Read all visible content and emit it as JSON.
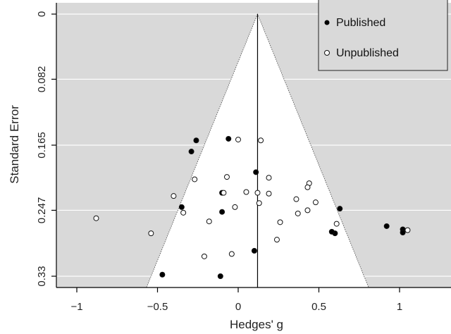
{
  "chart_data": {
    "type": "scatter",
    "title": "",
    "xlabel": "Hedges' g",
    "ylabel": "Standard Error",
    "xlim": [
      -1.1,
      1.3
    ],
    "ylim": [
      0.33,
      0.0
    ],
    "y_inverted": true,
    "x_ticks": [
      -1,
      -0.5,
      0,
      0.5,
      1
    ],
    "x_tick_labels": [
      "−1",
      "−0.5",
      "0",
      "0.5",
      "1"
    ],
    "y_ticks": [
      0,
      0.082,
      0.165,
      0.247,
      0.33
    ],
    "y_tick_labels": [
      "0",
      "0.082",
      "0.165",
      "0.247",
      "0.33"
    ],
    "grid": "horizontal",
    "background": "#d9d9d9",
    "funnel_color": "#ffffff",
    "pooled_effect": 0.12,
    "funnel_half_width_at_max_se": 0.66,
    "legend_position": "top-right",
    "legend": [
      {
        "label": "Published",
        "marker": "filled-circle"
      },
      {
        "label": "Unpublished",
        "marker": "open-circle"
      }
    ],
    "series": [
      {
        "name": "Published",
        "marker": "filled",
        "points": [
          {
            "x": -0.26,
            "y": 0.159
          },
          {
            "x": -0.06,
            "y": 0.157
          },
          {
            "x": -0.29,
            "y": 0.173
          },
          {
            "x": 0.11,
            "y": 0.199
          },
          {
            "x": -0.1,
            "y": 0.225
          },
          {
            "x": -0.35,
            "y": 0.243
          },
          {
            "x": -0.1,
            "y": 0.249
          },
          {
            "x": 0.63,
            "y": 0.245
          },
          {
            "x": 0.6,
            "y": 0.276
          },
          {
            "x": 0.58,
            "y": 0.274
          },
          {
            "x": 0.92,
            "y": 0.267
          },
          {
            "x": 1.02,
            "y": 0.271
          },
          {
            "x": 1.02,
            "y": 0.275
          },
          {
            "x": 0.1,
            "y": 0.298
          },
          {
            "x": -0.47,
            "y": 0.328
          },
          {
            "x": -0.11,
            "y": 0.33
          }
        ]
      },
      {
        "name": "Unpublished",
        "marker": "open",
        "points": [
          {
            "x": 0.0,
            "y": 0.158
          },
          {
            "x": 0.14,
            "y": 0.159
          },
          {
            "x": 0.19,
            "y": 0.206
          },
          {
            "x": -0.07,
            "y": 0.205
          },
          {
            "x": -0.27,
            "y": 0.208
          },
          {
            "x": 0.44,
            "y": 0.213
          },
          {
            "x": 0.43,
            "y": 0.218
          },
          {
            "x": -0.09,
            "y": 0.225
          },
          {
            "x": 0.05,
            "y": 0.224
          },
          {
            "x": 0.12,
            "y": 0.225
          },
          {
            "x": 0.19,
            "y": 0.226
          },
          {
            "x": -0.4,
            "y": 0.229
          },
          {
            "x": 0.36,
            "y": 0.233
          },
          {
            "x": 0.48,
            "y": 0.237
          },
          {
            "x": 0.13,
            "y": 0.238
          },
          {
            "x": -0.02,
            "y": 0.243
          },
          {
            "x": 0.43,
            "y": 0.247
          },
          {
            "x": 0.37,
            "y": 0.251
          },
          {
            "x": -0.34,
            "y": 0.25
          },
          {
            "x": -0.88,
            "y": 0.257
          },
          {
            "x": -0.18,
            "y": 0.261
          },
          {
            "x": 0.26,
            "y": 0.262
          },
          {
            "x": 0.61,
            "y": 0.264
          },
          {
            "x": 1.05,
            "y": 0.272
          },
          {
            "x": -0.54,
            "y": 0.276
          },
          {
            "x": 0.24,
            "y": 0.284
          },
          {
            "x": -0.04,
            "y": 0.302
          },
          {
            "x": -0.21,
            "y": 0.305
          }
        ]
      }
    ]
  }
}
